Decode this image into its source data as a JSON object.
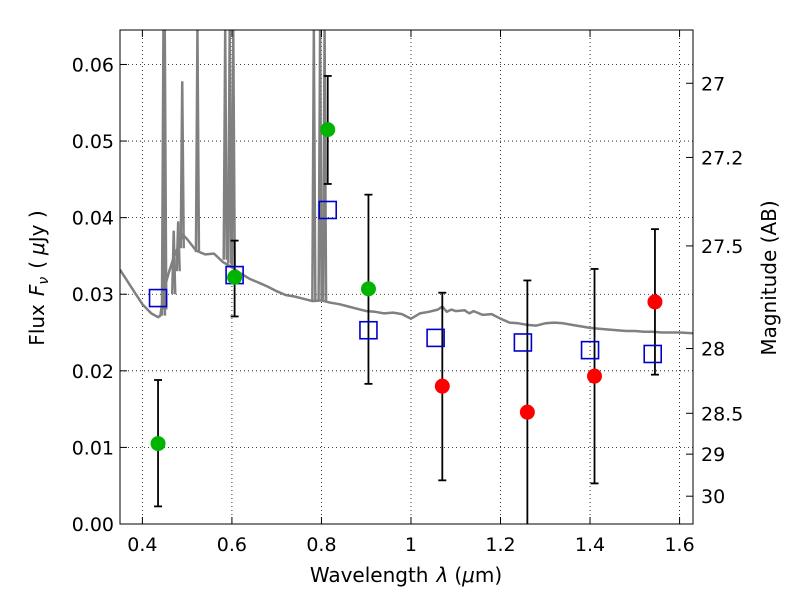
{
  "chart_data": {
    "type": "scatter",
    "xlabel_text": "Wavelength",
    "xlabel_symbol": "λ",
    "xlabel_unit_open": "(",
    "xlabel_unit_mu": "μ",
    "xlabel_unit_rest": "m)",
    "ylabel_text": "Flux",
    "ylabel_symbol_F": "F",
    "ylabel_symbol_nu": "ν",
    "ylabel_unit_open": "(",
    "ylabel_unit_mu": "μ",
    "ylabel_unit_rest": "Jy )",
    "y2label": "Magnitude (AB)",
    "xlim": [
      0.35,
      1.63
    ],
    "ylim": [
      0.0,
      0.0645
    ],
    "x_ticks": [
      0.4,
      0.6,
      0.8,
      1.0,
      1.2,
      1.4,
      1.6
    ],
    "x_tick_labels": [
      "0.4",
      "0.6",
      "0.8",
      "1",
      "1.2",
      "1.4",
      "1.6"
    ],
    "y_ticks": [
      0.0,
      0.01,
      0.02,
      0.03,
      0.04,
      0.05,
      0.06
    ],
    "y_tick_labels": [
      "0.00",
      "0.01",
      "0.02",
      "0.03",
      "0.04",
      "0.05",
      "0.06"
    ],
    "mag_ticks": [
      27,
      27.2,
      27.5,
      28,
      28.5,
      29,
      30
    ],
    "mag_tick_labels": [
      "27",
      "27.2",
      "27.5",
      "28",
      "28.5",
      "29",
      "30"
    ],
    "grid": true,
    "colors": {
      "model": "#808080",
      "green": "#00b400",
      "red": "#ff0000",
      "square": "#0000cc",
      "errorbar": "#000000"
    },
    "model_continuum": [
      [
        0.35,
        0.0332
      ],
      [
        0.38,
        0.0305
      ],
      [
        0.4,
        0.0287
      ],
      [
        0.42,
        0.0275
      ],
      [
        0.435,
        0.027
      ],
      [
        0.44,
        0.0272
      ],
      [
        0.45,
        0.031
      ],
      [
        0.46,
        0.033
      ],
      [
        0.47,
        0.0348
      ],
      [
        0.48,
        0.0362
      ],
      [
        0.49,
        0.0378
      ],
      [
        0.5,
        0.0372
      ],
      [
        0.52,
        0.0357
      ],
      [
        0.54,
        0.0352
      ],
      [
        0.56,
        0.0353
      ],
      [
        0.58,
        0.0342
      ],
      [
        0.6,
        0.0335
      ],
      [
        0.62,
        0.0327
      ],
      [
        0.64,
        0.032
      ],
      [
        0.66,
        0.0315
      ],
      [
        0.68,
        0.031
      ],
      [
        0.7,
        0.0304
      ],
      [
        0.72,
        0.0299
      ],
      [
        0.74,
        0.0297
      ],
      [
        0.76,
        0.0294
      ],
      [
        0.78,
        0.0291
      ],
      [
        0.8,
        0.0292
      ],
      [
        0.82,
        0.0289
      ],
      [
        0.84,
        0.0287
      ],
      [
        0.86,
        0.0284
      ],
      [
        0.88,
        0.0281
      ],
      [
        0.9,
        0.0278
      ],
      [
        0.92,
        0.0277
      ],
      [
        0.94,
        0.0275
      ],
      [
        0.96,
        0.0276
      ],
      [
        0.98,
        0.0274
      ],
      [
        1.0,
        0.0268
      ],
      [
        1.02,
        0.0275
      ],
      [
        1.04,
        0.0277
      ],
      [
        1.06,
        0.028
      ],
      [
        1.07,
        0.0284
      ],
      [
        1.08,
        0.0277
      ],
      [
        1.09,
        0.028
      ],
      [
        1.1,
        0.0278
      ],
      [
        1.12,
        0.0279
      ],
      [
        1.13,
        0.0275
      ],
      [
        1.14,
        0.0278
      ],
      [
        1.16,
        0.0273
      ],
      [
        1.18,
        0.0274
      ],
      [
        1.2,
        0.0268
      ],
      [
        1.22,
        0.0263
      ],
      [
        1.24,
        0.0262
      ],
      [
        1.26,
        0.026
      ],
      [
        1.28,
        0.0259
      ],
      [
        1.3,
        0.0262
      ],
      [
        1.32,
        0.0263
      ],
      [
        1.34,
        0.0262
      ],
      [
        1.36,
        0.026
      ],
      [
        1.38,
        0.0258
      ],
      [
        1.4,
        0.0256
      ],
      [
        1.42,
        0.0255
      ],
      [
        1.44,
        0.0254
      ],
      [
        1.46,
        0.0253
      ],
      [
        1.48,
        0.0252
      ],
      [
        1.5,
        0.0252
      ],
      [
        1.52,
        0.0251
      ],
      [
        1.54,
        0.0251
      ],
      [
        1.56,
        0.025
      ],
      [
        1.58,
        0.025
      ],
      [
        1.6,
        0.025
      ],
      [
        1.63,
        0.0249
      ]
    ],
    "model_lines": [
      {
        "x": 0.447,
        "peak": 0.0645,
        "base": 0.0272
      },
      {
        "x": 0.45,
        "peak": 0.0645,
        "base": 0.028
      },
      {
        "x": 0.47,
        "peak": 0.0383,
        "base": 0.03
      },
      {
        "x": 0.48,
        "peak": 0.0395,
        "base": 0.033
      },
      {
        "x": 0.489,
        "peak": 0.0578,
        "base": 0.036
      },
      {
        "x": 0.523,
        "peak": 0.0645,
        "base": 0.0355
      },
      {
        "x": 0.585,
        "peak": 0.0645,
        "base": 0.0345
      },
      {
        "x": 0.595,
        "peak": 0.0645,
        "base": 0.034
      },
      {
        "x": 0.603,
        "peak": 0.0645,
        "base": 0.0336
      },
      {
        "x": 0.783,
        "peak": 0.0645,
        "base": 0.0292
      },
      {
        "x": 0.797,
        "peak": 0.0645,
        "base": 0.0292
      },
      {
        "x": 0.807,
        "peak": 0.0645,
        "base": 0.0291
      }
    ],
    "model_points": [
      {
        "x": 0.435,
        "y": 0.0295
      },
      {
        "x": 0.606,
        "y": 0.0325
      },
      {
        "x": 0.814,
        "y": 0.041
      },
      {
        "x": 0.905,
        "y": 0.0253
      },
      {
        "x": 1.055,
        "y": 0.0243
      },
      {
        "x": 1.25,
        "y": 0.0237
      },
      {
        "x": 1.4,
        "y": 0.0227
      },
      {
        "x": 1.54,
        "y": 0.0222
      }
    ],
    "detections": [
      {
        "x": 0.435,
        "y": 0.0105,
        "err_low": 0.0023,
        "err_high": 0.0188
      },
      {
        "x": 0.606,
        "y": 0.0322,
        "err_low": 0.0271,
        "err_high": 0.037
      },
      {
        "x": 0.814,
        "y": 0.0515,
        "err_low": 0.0444,
        "err_high": 0.0585
      },
      {
        "x": 0.905,
        "y": 0.0307,
        "err_low": 0.0183,
        "err_high": 0.043
      }
    ],
    "upper_points": [
      {
        "x": 1.07,
        "y": 0.018,
        "err_low": 0.0057,
        "err_high": 0.0302
      },
      {
        "x": 1.26,
        "y": 0.0146,
        "err_low": 0.0,
        "err_high": 0.0318
      },
      {
        "x": 1.41,
        "y": 0.0193,
        "err_low": 0.0053,
        "err_high": 0.0333
      },
      {
        "x": 1.545,
        "y": 0.029,
        "err_low": 0.0195,
        "err_high": 0.0385
      }
    ]
  }
}
